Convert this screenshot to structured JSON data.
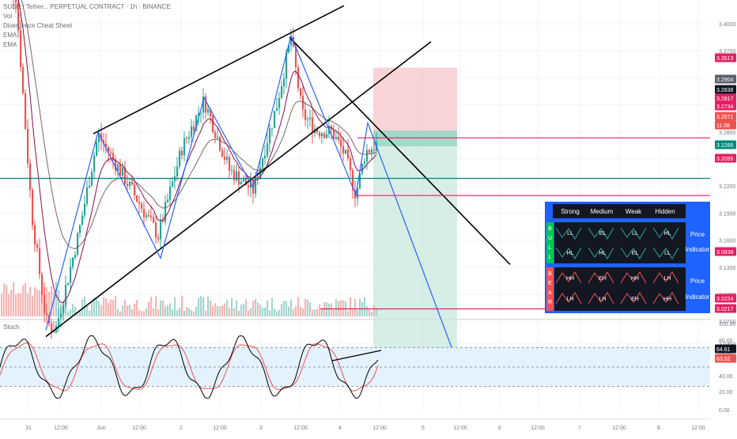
{
  "header": {
    "symbol_line": "SUSD / Tether... PERPETUAL CONTRACT · 1h · BINANCE",
    "vol_label": "Vol · S",
    "indicator_label": "Divergence Cheat Sheet",
    "ema1_label": "EMA",
    "ema2_label": "EMA"
  },
  "colors": {
    "up": "#26a69a",
    "down": "#ef5350",
    "pattern": "#2962ff",
    "trendline": "#000000",
    "level_pink": "#e91e63",
    "level_teal": "#00897b",
    "stop_zone": "#f7c6c9",
    "target_zone": "#c8e8de",
    "stoch_k": "#000000",
    "stoch_d": "#ef5350",
    "stoch_band": "#e3f2fd",
    "panel_bg": "#1e62ff",
    "panel_inner": "#131722"
  },
  "chart_data": {
    "type": "candlestick",
    "title": "SUSD / Tether... PERPETUAL CONTRACT · 1h · BINANCE",
    "x_ticks": [
      "31",
      "12:00",
      "Jun",
      "12:00",
      "2",
      "12:00",
      "3",
      "12:00",
      "4",
      "12:00",
      "5",
      "12:00",
      "6",
      "12:00",
      "7",
      "12:00",
      "8",
      "12:00"
    ],
    "y_ticks": [
      3.4,
      3.37,
      3.34,
      3.31,
      3.28,
      3.25,
      3.22,
      3.19,
      3.16,
      3.13,
      3.1,
      3.07,
      3.045
    ],
    "price_labels": [
      {
        "text": "3.3513",
        "color": "#e91e63"
      },
      {
        "text": "3.2904",
        "color": "#5d606b"
      },
      {
        "text": "3.2838",
        "color": "#131722"
      },
      {
        "text": "3.2817",
        "color": "#e91e63"
      },
      {
        "text": "3.2734",
        "color": "#e91e63"
      },
      {
        "text": "3.2671",
        "color": "#ef5350"
      },
      {
        "text": "11:08",
        "color": "#ef5350"
      },
      {
        "text": "3.2285",
        "color": "#00897b"
      },
      {
        "text": "3.2095",
        "color": "#e91e63"
      },
      {
        "text": "3.0838",
        "color": "#e91e63"
      },
      {
        "text": "3.0224",
        "color": "#e91e63"
      },
      {
        "text": "3.0217",
        "color": "#e91e63"
      }
    ],
    "position": {
      "stop": 3.3513,
      "entry": 3.2817,
      "target": 3.0224
    },
    "horizontal_levels": [
      3.2734,
      3.2285,
      3.2095,
      3.0838,
      3.0224,
      3.0217
    ],
    "stochastic": {
      "label": "Stoch",
      "values": [
        "64.61",
        "63.52"
      ],
      "ticks": [
        "100.00",
        "80.00",
        "60.00",
        "40.00",
        "20.00",
        "0.00"
      ],
      "upper_band": 80,
      "lower_band": 20
    }
  },
  "cheat_sheet": {
    "headers": [
      "Strong",
      "Medium",
      "Weak",
      "Hidden"
    ],
    "bull_label": "BULL",
    "bear_label": "BEAR",
    "bull_rows": [
      [
        "LL",
        "EL",
        "LL",
        "HL"
      ],
      [
        "HL",
        "HL",
        "EL",
        "LL"
      ]
    ],
    "bear_rows": [
      [
        "HH",
        "EH",
        "HH",
        "LH"
      ],
      [
        "LH",
        "LH",
        "EH",
        "HH"
      ]
    ],
    "price_label": "Price",
    "indicator_label": "Indicator"
  }
}
